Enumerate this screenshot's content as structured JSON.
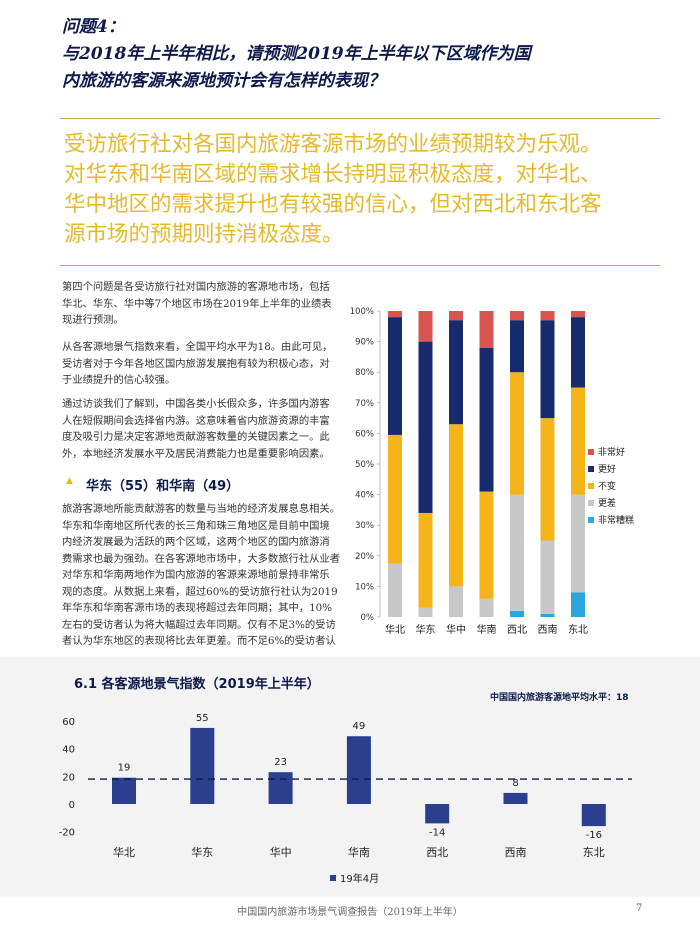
{
  "question": {
    "lines": [
      "问题4：",
      "与2018年上半年相比，请预测2019年上半年以下区域作为国",
      "内旅游的客源来源地预计会有怎样的表现？"
    ]
  },
  "summary": {
    "lines": [
      "受访旅行社对各国内旅游客源市场的业绩预期较为乐观。",
      "对华东和华南区域的需求增长持明显积极态度，对华北、",
      "华中地区的需求提升也有较强的信心，但对西北和东北客",
      "源市场的预期则持消极态度。"
    ]
  },
  "body": {
    "para1": [
      "第四个问题是各受访旅行社对国内旅游的客源地市场，包括",
      "华北、华东、华中等7个地区市场在2019年上半年的业绩表",
      "现进行预测。"
    ],
    "para2": [
      "从各客源地景气指数来看，全国平均水平为18。由此可见，",
      "受访者对于今年各地区国内旅游发展抱有较为积极心态，对",
      "于业绩提升的信心较强。"
    ],
    "para3": [
      "通过访谈我们了解到，中国各类小长假众多，许多国内游客",
      "人在短假期间会选择省内游。这意味着省内旅游资源的丰富",
      "度及吸引力是决定客源地贡献游客数量的关键因素之一。此",
      "外，本地经济发展水平及居民消费能力也是重要影响因素。"
    ],
    "region_heading": "华东（55）和华南（49）",
    "para4": [
      "旅游客源地所能贡献游客的数量与当地的经济发展息息相关。",
      "华东和华南地区所代表的长三角和珠三角地区是目前中国境",
      "内经济发展最为活跃的两个区域，这两个地区的国内旅游消",
      "费需求也最为强劲。在各客源地市场中，大多数旅行社从业者",
      "对华东和华南两地作为国内旅游的客源来源地前景持非常乐",
      "观的态度。从数据上来看，超过60%的受访旅行社认为2019",
      "年华东和华南客源市场的表现将超过去年同期；其中，10%",
      "左右的受访者认为将大幅超过去年同期。仅有不足3%的受访",
      "者认为华东地区的表现将比去年更差。而不足6%的受访者认"
    ]
  },
  "chart_data": [
    {
      "type": "bar",
      "stacked": true,
      "categories": [
        "华北",
        "华东",
        "华中",
        "华南",
        "西北",
        "西南",
        "东北"
      ],
      "series": [
        {
          "name": "非常糟糕",
          "color": "#29a8df",
          "values": [
            0,
            0,
            0,
            0,
            2,
            1,
            8
          ]
        },
        {
          "name": "更差",
          "color": "#c8c8c8",
          "values": [
            17.5,
            3,
            10,
            6,
            38,
            24,
            32
          ]
        },
        {
          "name": "不变",
          "color": "#f4b41a",
          "values": [
            42,
            31,
            53,
            35,
            40,
            40,
            35
          ]
        },
        {
          "name": "更好",
          "color": "#152b6b",
          "values": [
            38.5,
            56,
            34,
            47,
            17,
            32,
            23
          ]
        },
        {
          "name": "非常好",
          "color": "#d9534f",
          "values": [
            2,
            10,
            3,
            12,
            3,
            3,
            2
          ]
        }
      ],
      "legend_order": [
        "非常好",
        "更好",
        "不变",
        "更差",
        "非常糟糕"
      ],
      "yticks": [
        "0%",
        "10%",
        "20%",
        "30%",
        "40%",
        "50%",
        "60%",
        "70%",
        "80%",
        "90%",
        "100%"
      ],
      "ylim": [
        0,
        100
      ],
      "legend_position": "right"
    },
    {
      "type": "bar",
      "title": "6.1 各客源地景气指数（2019年上半年）",
      "categories": [
        "华北",
        "华东",
        "华中",
        "华南",
        "西北",
        "西南",
        "东北"
      ],
      "values": [
        19,
        55,
        23,
        49,
        -14,
        8,
        -16
      ],
      "value_labels": [
        "19",
        "55",
        "23",
        "49",
        "-14",
        "8",
        "-16"
      ],
      "series_name": "19年4月",
      "reference_line": {
        "label": "中国国内旅游客源地平均水平：",
        "value": 18
      },
      "yticks": [
        "60",
        "40",
        "20",
        "0",
        "-20"
      ],
      "ylim": [
        -20,
        60
      ],
      "color": "#2b3f8f"
    }
  ],
  "footer": {
    "text": "中国国内旅游市场景气调查报告（2019年上半年）",
    "page": "7"
  },
  "colors": {
    "accent": "#e6b92a",
    "navy": "#0e1a4a",
    "rule": "#c8a44a"
  }
}
